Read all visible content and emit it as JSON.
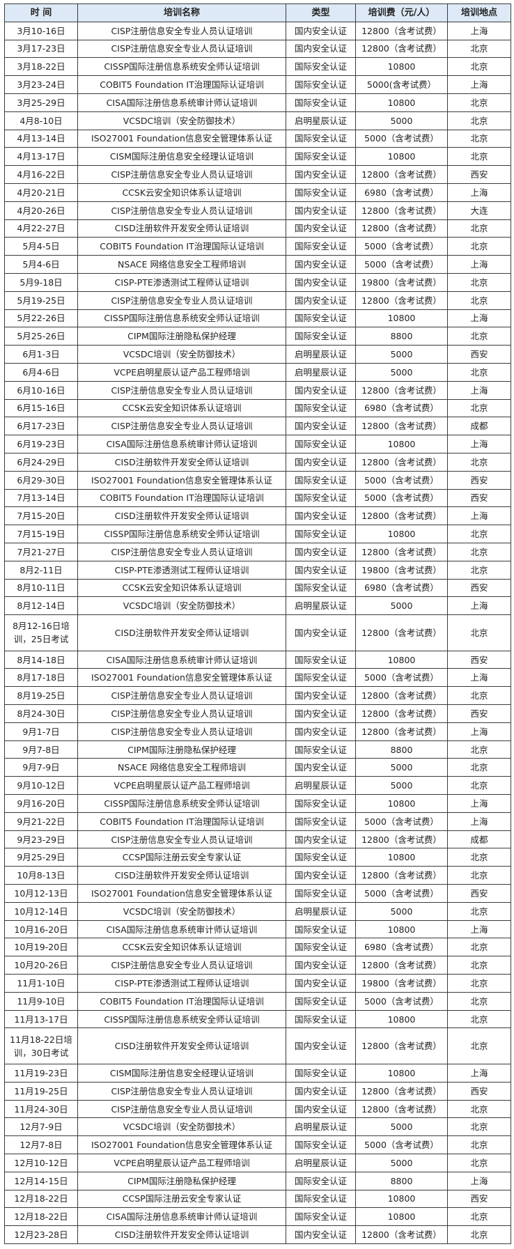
{
  "header_bg": "#dde9f6",
  "columns": [
    "时 间",
    "培训名称",
    "类型",
    "培训费（元/人）",
    "培训地点"
  ],
  "rows": [
    [
      "3月10-16日",
      "CISP注册信息安全专业人员认证培训",
      "国内安全认证",
      "12800（含考试费）",
      "上海"
    ],
    [
      "3月17-23日",
      "CISP注册信息安全专业人员认证培训",
      "国内安全认证",
      "12800（含考试费）",
      "北京"
    ],
    [
      "3月18-22日",
      "CISSP国际注册信息系统安全师认证培训",
      "国际安全认证",
      "10800",
      "北京"
    ],
    [
      "3月23-24日",
      "COBIT5 Foundation IT治理国际认证培训",
      "国际安全认证",
      "5000(含考试费）",
      "上海"
    ],
    [
      "3月25-29日",
      "CISA国际注册信息系统审计师认证培训",
      "国际安全认证",
      "10800",
      "北京"
    ],
    [
      "4月8-10日",
      "VCSDC培训（安全防御技术）",
      "启明星辰认证",
      "5000",
      "北京"
    ],
    [
      "4月13-14日",
      "ISO27001 Foundation信息安全管理体系认证",
      "国际安全认证",
      "5000（含考试费）",
      "北京"
    ],
    [
      "4月13-17日",
      "CISM国际注册信息安全经理认证培训",
      "国际安全认证",
      "10800",
      "北京"
    ],
    [
      "4月16-22日",
      "CISP注册信息安全专业人员认证培训",
      "国内安全认证",
      "12800（含考试费）",
      "西安"
    ],
    [
      "4月20-21日",
      "CCSK云安全知识体系认证培训",
      "国际安全认证",
      "6980（含考试费）",
      "上海"
    ],
    [
      "4月20-26日",
      "CISP注册信息安全专业人员认证培训",
      "国内安全认证",
      "12800（含考试费）",
      "大连"
    ],
    [
      "4月22-27日",
      "CISD注册软件开发安全师认证培训",
      "国内安全认证",
      "12800（含考试费）",
      "北京"
    ],
    [
      "5月4-5日",
      "COBIT5 Foundation IT治理国际认证培训",
      "国际安全认证",
      "5000（含考试费）",
      "北京"
    ],
    [
      "5月4-6日",
      "NSACE 网络信息安全工程师培训",
      "国内安全认证",
      "5000（含考试费）",
      "上海"
    ],
    [
      "5月9-18日",
      "CISP-PTE渗透测试工程师认证培训",
      "国内安全认证",
      "19800（含考试费）",
      "北京"
    ],
    [
      "5月19-25日",
      "CISP注册信息安全专业人员认证培训",
      "国内安全认证",
      "12800（含考试费）",
      "北京"
    ],
    [
      "5月22-26日",
      "CISSP国际注册信息系统安全师认证培训",
      "国际安全认证",
      "10800",
      "上海"
    ],
    [
      "5月25-26日",
      "CIPM国际注册隐私保护经理",
      "国际安全认证",
      "8800",
      "北京"
    ],
    [
      "6月1-3日",
      "VCSDC培训（安全防御技术）",
      "启明星辰认证",
      "5000",
      "西安"
    ],
    [
      "6月4-6日",
      "VCPE启明星辰认证产品工程师培训",
      "启明星辰认证",
      "5000",
      "北京"
    ],
    [
      "6月10-16日",
      "CISP注册信息安全专业人员认证培训",
      "国内安全认证",
      "12800（含考试费）",
      "上海"
    ],
    [
      "6月15-16日",
      "CCSK云安全知识体系认证培训",
      "国际安全认证",
      "6980（含考试费）",
      "北京"
    ],
    [
      "6月17-23日",
      "CISP注册信息安全专业人员认证培训",
      "国内安全认证",
      "12800（含考试费）",
      "成都"
    ],
    [
      "6月19-23日",
      "CISA国际注册信息系统审计师认证培训",
      "国际安全认证",
      "10800",
      "上海"
    ],
    [
      "6月24-29日",
      "CISD注册软件开发安全师认证培训",
      "国内安全认证",
      "12800（含考试费）",
      "北京"
    ],
    [
      "6月29-30日",
      "ISO27001 Foundation信息安全管理体系认证",
      "国际安全认证",
      "5000（含考试费）",
      "西安"
    ],
    [
      "7月13-14日",
      "COBIT5 Foundation IT治理国际认证培训",
      "国际安全认证",
      "5000（含考试费）",
      "西安"
    ],
    [
      "7月15-20日",
      "CISD注册软件开发安全师认证培训",
      "国内安全认证",
      "12800（含考试费）",
      "上海"
    ],
    [
      "7月15-19日",
      "CISSP国际注册信息系统安全师认证培训",
      "国际安全认证",
      "10800",
      "北京"
    ],
    [
      "7月21-27日",
      "CISP注册信息安全专业人员认证培训",
      "国内安全认证",
      "12800（含考试费）",
      "北京"
    ],
    [
      "8月2-11日",
      "CISP-PTE渗透测试工程师认证培训",
      "国内安全认证",
      "19800（含考试费）",
      "北京"
    ],
    [
      "8月10-11日",
      "CCSK云安全知识体系认证培训",
      "国际安全认证",
      "6980（含考试费）",
      "西安"
    ],
    [
      "8月12-14日",
      "VCSDC培训（安全防御技术）",
      "启明星辰认证",
      "5000",
      "上海"
    ],
    [
      "8月12-16日培训，25日考试",
      "CISD注册软件开发安全师认证培训",
      "国内安全认证",
      "12800（含考试费）",
      "北京"
    ],
    [
      "8月14-18日",
      "CISA国际注册信息系统审计师认证培训",
      "国际安全认证",
      "10800",
      "西安"
    ],
    [
      "8月17-18日",
      "ISO27001 Foundation信息安全管理体系认证",
      "国际安全认证",
      "5000（含考试费）",
      "上海"
    ],
    [
      "8月19-25日",
      "CISP注册信息安全专业人员认证培训",
      "国内安全认证",
      "12800（含考试费）",
      "北京"
    ],
    [
      "8月24-30日",
      "CISP注册信息安全专业人员认证培训",
      "国内安全认证",
      "12800（含考试费）",
      "西安"
    ],
    [
      "9月1-7日",
      "CISP注册信息安全专业人员认证培训",
      "国内安全认证",
      "12800（含考试费）",
      "上海"
    ],
    [
      "9月7-8日",
      "CIPM国际注册隐私保护经理",
      "国际安全认证",
      "8800",
      "北京"
    ],
    [
      "9月7-9日",
      "NSACE 网络信息安全工程师培训",
      "国内安全认证",
      "5000",
      "北京"
    ],
    [
      "9月10-12日",
      "VCPE启明星辰认证产品工程师培训",
      "启明星辰认证",
      "5000",
      "北京"
    ],
    [
      "9月16-20日",
      "CISSP国际注册信息系统安全师认证培训",
      "国际安全认证",
      "10800",
      "上海"
    ],
    [
      "9月21-22日",
      "COBIT5 Foundation IT治理国际认证培训",
      "国际安全认证",
      "5000（含考试费）",
      "上海"
    ],
    [
      "9月23-29日",
      "CISP注册信息安全专业人员认证培训",
      "国内安全认证",
      "12800（含考试费）",
      "成都"
    ],
    [
      "9月25-29日",
      "CCSP国际注册云安全专家认证",
      "国际安全认证",
      "10800",
      "北京"
    ],
    [
      "10月8-13日",
      "CISD注册软件开发安全师认证培训",
      "国内安全认证",
      "12800（含考试费）",
      "北京"
    ],
    [
      "10月12-13日",
      "ISO27001 Foundation信息安全管理体系认证",
      "国际安全认证",
      "5000（含考试费）",
      "西安"
    ],
    [
      "10月12-14日",
      "VCSDC培训（安全防御技术）",
      "启明星辰认证",
      "5000",
      "北京"
    ],
    [
      "10月16-20日",
      "CISA国际注册信息系统审计师认证培训",
      "国际安全认证",
      "10800",
      "上海"
    ],
    [
      "10月19-20日",
      "CCSK云安全知识体系认证培训",
      "国际安全认证",
      "6980（含考试费）",
      "北京"
    ],
    [
      "10月20-26日",
      "CISP注册信息安全专业人员认证培训",
      "国内安全认证",
      "12800（含考试费）",
      "北京"
    ],
    [
      "11月1-10日",
      "CISP-PTE渗透测试工程师认证培训",
      "国内安全认证",
      "19800（含考试费）",
      "北京"
    ],
    [
      "11月9-10日",
      "COBIT5 Foundation IT治理国际认证培训",
      "国际安全认证",
      "5000（含考试费）",
      "北京"
    ],
    [
      "11月13-17日",
      "CISSP国际注册信息系统安全师认证培训",
      "国际安全认证",
      "10800",
      "北京"
    ],
    [
      "11月18-22日培训，30日考试",
      "CISD注册软件开发安全师认证培训",
      "国内安全认证",
      "12800（含考试费）",
      "北京"
    ],
    [
      "11月19-23日",
      "CISM国际注册信息安全经理认证培训",
      "国际安全认证",
      "10800",
      "上海"
    ],
    [
      "11月19-25日",
      "CISP注册信息安全专业人员认证培训",
      "国内安全认证",
      "12800（含考试费）",
      "西安"
    ],
    [
      "11月24-30日",
      "CISP注册信息安全专业人员认证培训",
      "国内安全认证",
      "12800（含考试费）",
      "北京"
    ],
    [
      "12月7-9日",
      "VCSDC培训（安全防御技术）",
      "启明星辰认证",
      "5000",
      "北京"
    ],
    [
      "12月7-8日",
      "ISO27001 Foundation信息安全管理体系认证",
      "国际安全认证",
      "5000（含考试费）",
      "北京"
    ],
    [
      "12月10-12日",
      "VCPE启明星辰认证产品工程师培训",
      "启明星辰认证",
      "5000",
      "北京"
    ],
    [
      "12月14-15日",
      "CIPM国际注册隐私保护经理",
      "国际安全认证",
      "8800",
      "上海"
    ],
    [
      "12月18-22日",
      "CCSP国际注册云安全专家认证",
      "国际安全认证",
      "10800",
      "西安"
    ],
    [
      "12月18-22日",
      "CISA国际注册信息系统审计师认证培训",
      "国际安全认证",
      "10800",
      "北京"
    ],
    [
      "12月23-28日",
      "CISD注册软件开发安全师认证培训",
      "国内安全认证",
      "12800（含考试费）",
      "北京"
    ]
  ]
}
